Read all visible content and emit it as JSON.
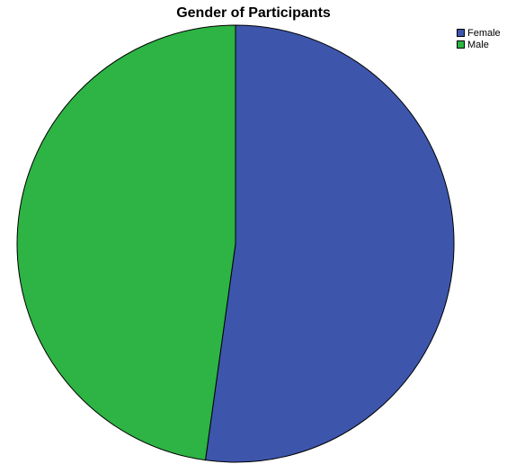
{
  "chart_data": {
    "type": "pie",
    "title": "Gender of Participants",
    "slices": [
      {
        "label": "Female",
        "value": 52.2,
        "color": "#3d56ac"
      },
      {
        "label": "Male",
        "value": 47.8,
        "color": "#2db444"
      }
    ],
    "legend_position": "top-right",
    "start_angle": "12 o'clock",
    "direction": "clockwise"
  }
}
